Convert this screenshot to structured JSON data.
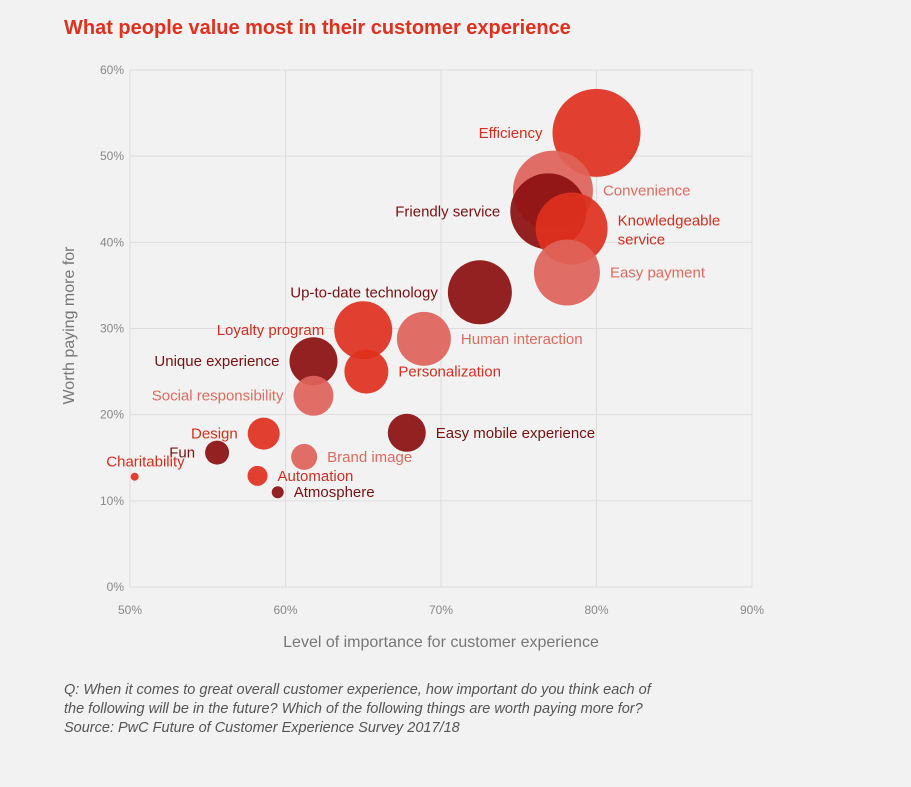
{
  "title": "What people value most in their customer experience",
  "footnote": {
    "line1": "Q: When it comes to great overall customer experience, how important do you think each of",
    "line2": "the following will be in the future? Which of the following things are worth paying more for?",
    "line3": "Source: PwC Future of Customer Experience Survey 2017/18"
  },
  "colors": {
    "red": "#e0301e",
    "dark": "#8b0f0f",
    "pink": "#e0635a",
    "grid": "#dddddd",
    "tick": "#888888",
    "axis_title": "#777777"
  },
  "chart_data": {
    "type": "scatter",
    "subtype": "bubble",
    "title": "What people value most in their customer experience",
    "xlabel": "Level of importance for customer experience",
    "ylabel": "Worth paying more for",
    "xlim": [
      50,
      90
    ],
    "ylim": [
      0,
      60
    ],
    "x_ticks": [
      "50%",
      "60%",
      "70%",
      "80%",
      "90%"
    ],
    "y_ticks": [
      "0%",
      "10%",
      "20%",
      "30%",
      "40%",
      "50%",
      "60%"
    ],
    "grid": true,
    "points": [
      {
        "label": "Efficiency",
        "x": 80,
        "y": 52.7,
        "size": 44,
        "tone": "red",
        "label_pos": "left"
      },
      {
        "label": "Convenience",
        "x": 77.2,
        "y": 46,
        "size": 40,
        "tone": "pink",
        "label_pos": "right"
      },
      {
        "label": "Friendly service",
        "x": 76.9,
        "y": 43.6,
        "size": 38,
        "tone": "dark",
        "label_pos": "left"
      },
      {
        "label": "Knowledgeable service",
        "lines": [
          "Knowledgeable",
          "service"
        ],
        "x": 78.4,
        "y": 41.6,
        "size": 36,
        "tone": "red",
        "label_pos": "right"
      },
      {
        "label": "Easy payment",
        "x": 78.1,
        "y": 36.5,
        "size": 33,
        "tone": "pink",
        "label_pos": "right"
      },
      {
        "label": "Up-to-date technology",
        "x": 72.5,
        "y": 34.2,
        "size": 32,
        "tone": "dark",
        "label_pos": "left"
      },
      {
        "label": "Loyalty program",
        "x": 65,
        "y": 29.8,
        "size": 29,
        "tone": "red",
        "label_pos": "left"
      },
      {
        "label": "Human interaction",
        "x": 68.9,
        "y": 28.8,
        "size": 27,
        "tone": "pink",
        "label_pos": "right"
      },
      {
        "label": "Unique experience",
        "x": 61.8,
        "y": 26.2,
        "size": 24,
        "tone": "dark",
        "label_pos": "left"
      },
      {
        "label": "Personalization",
        "x": 65.2,
        "y": 25,
        "size": 22,
        "tone": "red",
        "label_pos": "right"
      },
      {
        "label": "Social responsibility",
        "x": 61.8,
        "y": 22.2,
        "size": 20,
        "tone": "pink",
        "label_pos": "left"
      },
      {
        "label": "Easy mobile experience",
        "x": 67.8,
        "y": 17.9,
        "size": 19,
        "tone": "dark",
        "label_pos": "right"
      },
      {
        "label": "Design",
        "x": 58.6,
        "y": 17.8,
        "size": 16,
        "tone": "red",
        "label_pos": "left"
      },
      {
        "label": "Fun",
        "x": 55.6,
        "y": 15.6,
        "size": 12,
        "tone": "dark",
        "label_pos": "left"
      },
      {
        "label": "Brand image",
        "x": 61.2,
        "y": 15.1,
        "size": 13,
        "tone": "pink",
        "label_pos": "right"
      },
      {
        "label": "Automation",
        "x": 58.2,
        "y": 12.9,
        "size": 10,
        "tone": "red",
        "label_pos": "right"
      },
      {
        "label": "Charitability",
        "x": 50.3,
        "y": 12.8,
        "size": 4,
        "tone": "red",
        "label_pos": "left-up"
      },
      {
        "label": "Atmosphere",
        "x": 59.5,
        "y": 11,
        "size": 6,
        "tone": "dark",
        "label_pos": "right"
      }
    ]
  }
}
